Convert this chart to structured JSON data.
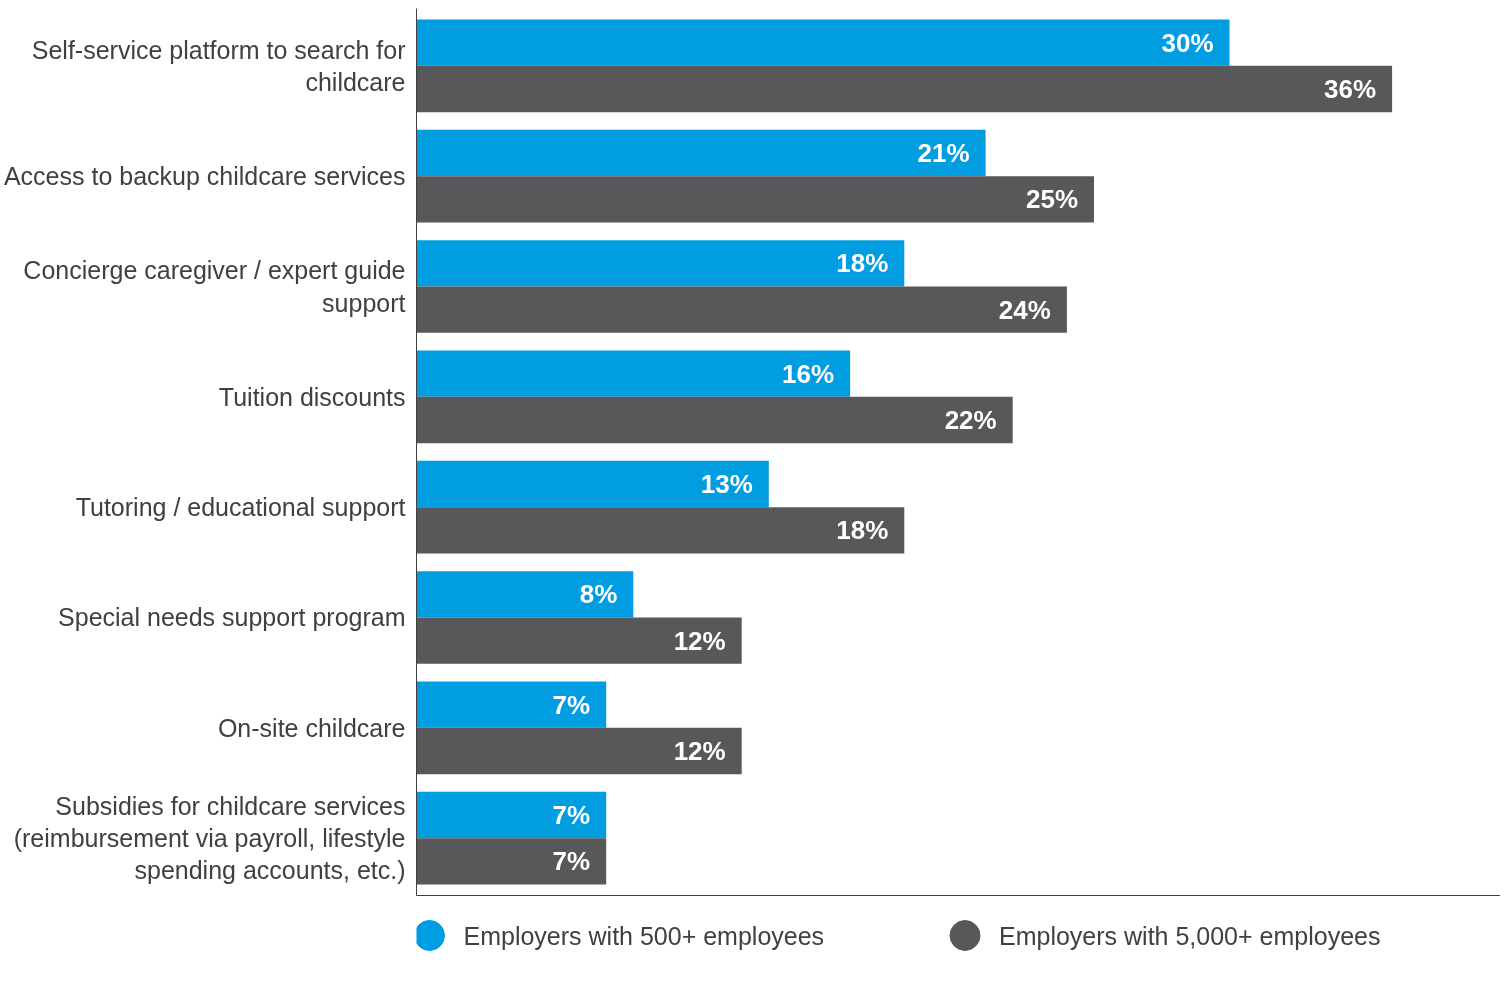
{
  "chart_data": {
    "type": "bar",
    "orientation": "horizontal",
    "categories": [
      "Self-service platform to search for childcare",
      "Access to backup childcare services",
      "Concierge caregiver / expert guide support",
      "Tuition discounts",
      "Tutoring / educational support",
      "Special needs support program",
      "On-site childcare",
      "Subsidies for childcare services (reimbursement via payroll, lifestyle spending accounts, etc.)"
    ],
    "series": [
      {
        "name": "Employers with 500+ employees",
        "color": "#009de0",
        "values": [
          30,
          21,
          18,
          16,
          13,
          8,
          7,
          7
        ],
        "value_labels": [
          "30%",
          "21%",
          "18%",
          "16%",
          "13%",
          "8%",
          "7%",
          "7%"
        ]
      },
      {
        "name": "Employers with 5,000+ employees",
        "color": "#58585a",
        "values": [
          36,
          25,
          24,
          22,
          18,
          12,
          12,
          7
        ],
        "value_labels": [
          "36%",
          "25%",
          "24%",
          "22%",
          "18%",
          "12%",
          "12%",
          "7%"
        ]
      }
    ],
    "xlim": [
      0,
      40
    ],
    "tick_labels": "y",
    "grid": false,
    "legend": "bottom",
    "marker": "circle"
  }
}
